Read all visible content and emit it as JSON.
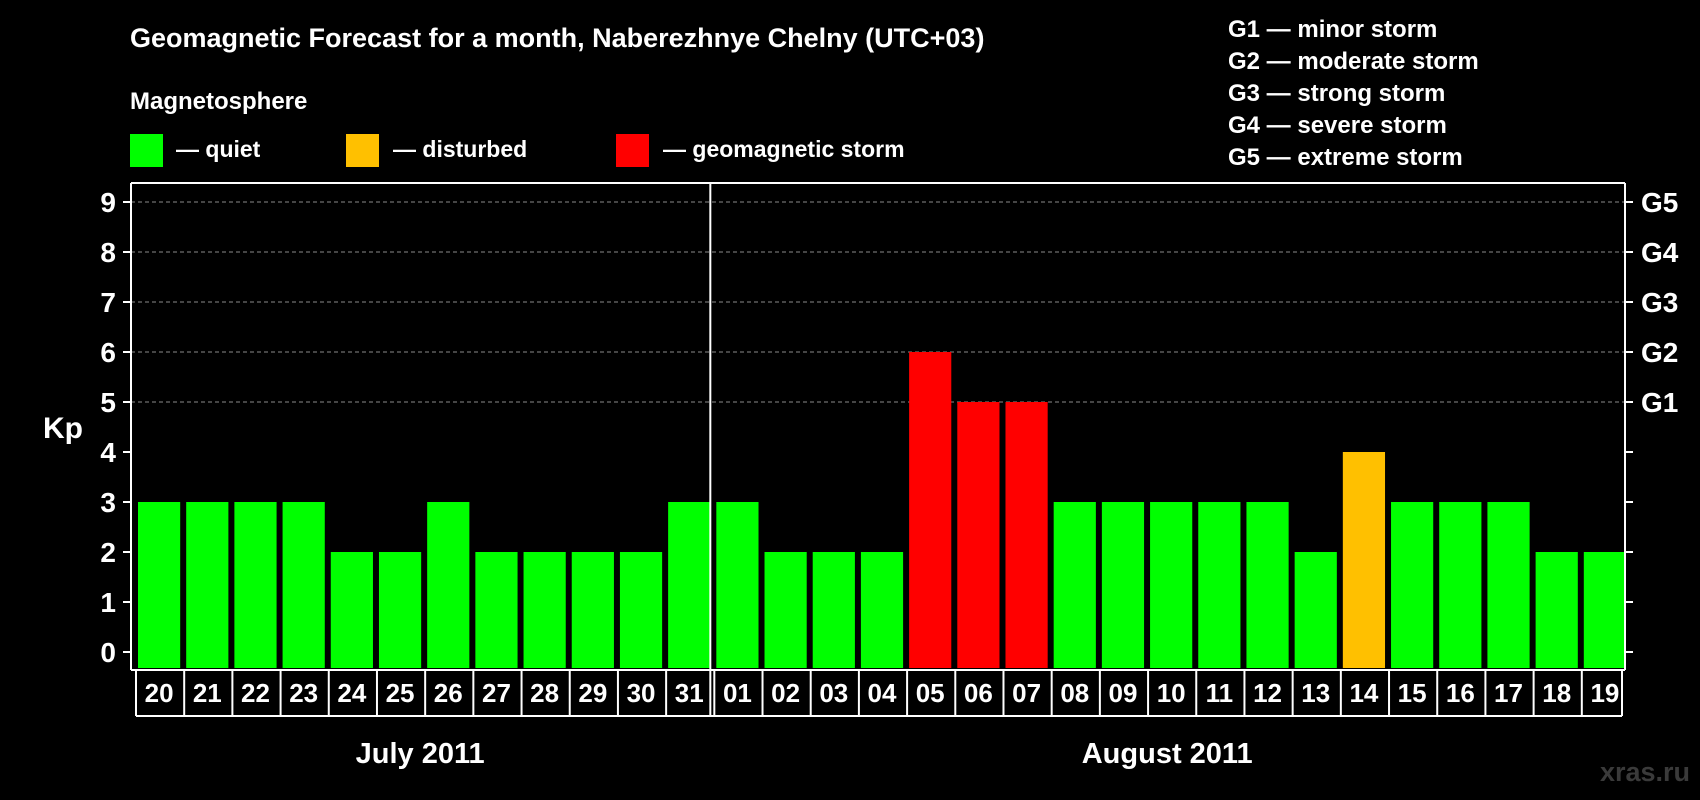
{
  "title": "Geomagnetic Forecast for a month, Naberezhnye Chelny (UTC+03)",
  "legend": {
    "heading": "Magnetosphere",
    "items": [
      {
        "label": "— quiet",
        "color": "#00ff00"
      },
      {
        "label": "— disturbed",
        "color": "#ffc000"
      },
      {
        "label": "— geomagnetic storm",
        "color": "#ff0000"
      }
    ]
  },
  "storm_scale": [
    "G1 — minor storm",
    "G2 — moderate storm",
    "G3 — strong storm",
    "G4 — severe storm",
    "G5 — extreme storm"
  ],
  "watermark": "xras.ru",
  "chart_data": {
    "type": "bar",
    "ylabel": "Kp",
    "ylim": [
      0,
      9
    ],
    "yticks": [
      0,
      1,
      2,
      3,
      4,
      5,
      6,
      7,
      8,
      9
    ],
    "right_axis": [
      {
        "kp": 5,
        "label": "G1"
      },
      {
        "kp": 6,
        "label": "G2"
      },
      {
        "kp": 7,
        "label": "G3"
      },
      {
        "kp": 8,
        "label": "G4"
      },
      {
        "kp": 9,
        "label": "G5"
      }
    ],
    "grid": "dashed horizontal at Kp 5-9",
    "months": [
      {
        "label": "July 2011",
        "days": [
          "20",
          "21",
          "22",
          "23",
          "24",
          "25",
          "26",
          "27",
          "28",
          "29",
          "30",
          "31"
        ]
      },
      {
        "label": "August 2011",
        "days": [
          "01",
          "02",
          "03",
          "04",
          "05",
          "06",
          "07",
          "08",
          "09",
          "10",
          "11",
          "12",
          "13",
          "14",
          "15",
          "16",
          "17",
          "18",
          "19"
        ]
      }
    ],
    "values": [
      3,
      3,
      3,
      3,
      2,
      2,
      3,
      2,
      2,
      2,
      2,
      3,
      3,
      2,
      2,
      2,
      6,
      5,
      5,
      3,
      3,
      3,
      3,
      3,
      2,
      4,
      3,
      3,
      3,
      2,
      2
    ],
    "colors": {
      "quiet": "#00ff00",
      "disturbed": "#ffc000",
      "storm": "#ff0000"
    }
  }
}
